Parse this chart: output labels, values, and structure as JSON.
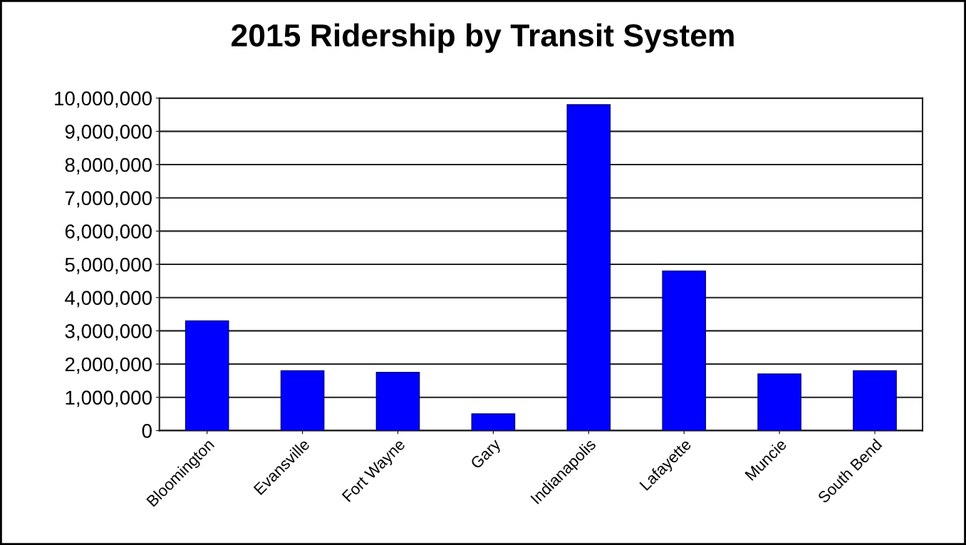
{
  "chart_data": {
    "type": "bar",
    "title": "2015 Ridership by Transit System",
    "categories": [
      "Bloomington",
      "Evansville",
      "Fort Wayne",
      "Gary",
      "Indianapolis",
      "Lafayette",
      "Muncie",
      "South Bend"
    ],
    "values": [
      3300000,
      1800000,
      1750000,
      500000,
      9800000,
      4800000,
      1700000,
      1800000
    ],
    "color": "#0000ff",
    "ylim": [
      0,
      10000000
    ],
    "yticks": [
      {
        "value": 0,
        "label": "0"
      },
      {
        "value": 1000000,
        "label": "1,000,000"
      },
      {
        "value": 2000000,
        "label": "2,000,000"
      },
      {
        "value": 3000000,
        "label": "3,000,000"
      },
      {
        "value": 4000000,
        "label": "4,000,000"
      },
      {
        "value": 5000000,
        "label": "5,000,000"
      },
      {
        "value": 6000000,
        "label": "6,000,000"
      },
      {
        "value": 7000000,
        "label": "7,000,000"
      },
      {
        "value": 8000000,
        "label": "8,000,000"
      },
      {
        "value": 9000000,
        "label": "9,000,000"
      },
      {
        "value": 10000000,
        "label": "10,000,000"
      }
    ],
    "grid": "y"
  }
}
